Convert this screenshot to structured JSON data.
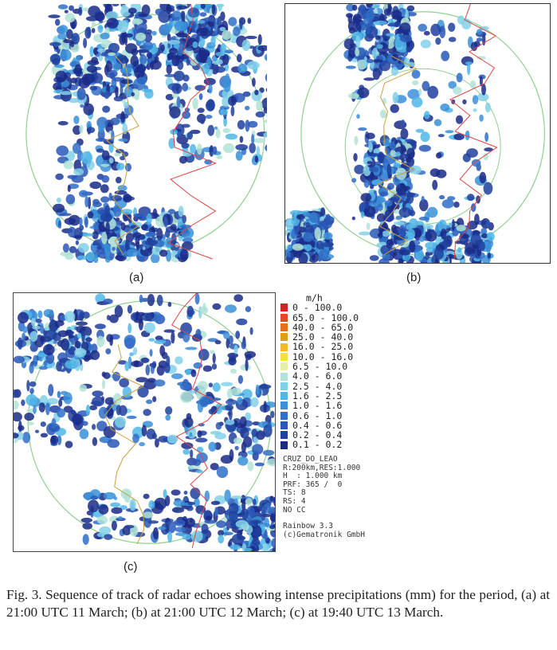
{
  "panels": [
    {
      "label": "(a)"
    },
    {
      "label": "(b)"
    },
    {
      "label": "(c)"
    }
  ],
  "legend": {
    "unit": "m/h",
    "items": [
      {
        "label": "0 - 100.0",
        "color": "#d42222"
      },
      {
        "label": "65.0 - 100.0",
        "color": "#e04a1c"
      },
      {
        "label": "40.0 - 65.0",
        "color": "#e2701c"
      },
      {
        "label": "25.0 - 40.0",
        "color": "#e8981e"
      },
      {
        "label": "16.0 - 25.0",
        "color": "#f0ba2a"
      },
      {
        "label": "10.0 - 16.0",
        "color": "#f2e03e"
      },
      {
        "label": "6.5 - 10.0",
        "color": "#e6f0a4"
      },
      {
        "label": "4.0 - 6.0",
        "color": "#b2e2d6"
      },
      {
        "label": "2.5 - 4.0",
        "color": "#82d0e8"
      },
      {
        "label": "1.6 - 2.5",
        "color": "#50b6e6"
      },
      {
        "label": "1.0 - 1.6",
        "color": "#3a90d8"
      },
      {
        "label": "0.6 - 1.0",
        "color": "#3070c8"
      },
      {
        "label": "0.4 - 0.6",
        "color": "#2a58b6"
      },
      {
        "label": "0.2 - 0.4",
        "color": "#20409e"
      },
      {
        "label": "0.1 - 0.2",
        "color": "#1a2a88"
      }
    ]
  },
  "info": [
    "CRUZ_DO_LEAO",
    "R:200km,RES:1.000",
    "H  : 1.000 km",
    "PRF: 365 /  0",
    "TS: 8",
    "RS: 4",
    "NO CC",
    "Rainbow 3.3",
    "(c)Gematronik GmbH"
  ],
  "caption": "Fig. 3. Sequence of track of radar echoes showing intense precipitations (mm) for the period, (a) at 21:00 UTC 11 March; (b) at 21:00 UTC 12 March; (c) at 19:40 UTC 13 March."
}
